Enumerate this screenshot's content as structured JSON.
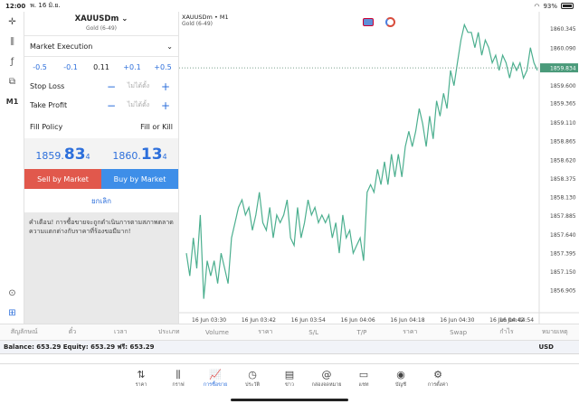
{
  "status": {
    "time": "12:00",
    "date": "พ. 16 มิ.ย.",
    "battery": "93%"
  },
  "tools": {
    "m1_label": "M1"
  },
  "order": {
    "symbol": "XAUUSDm",
    "description": "Gold (6-49)",
    "execution": "Market Execution",
    "volume_steps": [
      "-0.5",
      "-0.1",
      "0.11",
      "+0.1",
      "+0.5"
    ],
    "stop_loss_label": "Stop Loss",
    "take_profit_label": "Take Profit",
    "not_set": "ไม่ได้ตั้ง",
    "fill_policy_label": "Fill Policy",
    "fill_policy_value": "Fill or Kill",
    "bid_prefix": "1859.",
    "bid_big": "83",
    "bid_sup": "4",
    "ask_prefix": "1860.",
    "ask_big": "13",
    "ask_sup": "4",
    "sell_label": "Sell by Market",
    "buy_label": "Buy by Market",
    "cancel_label": "ยกเลิก",
    "warning": "คำเตือน! การซื้อขายจะถูกดำเนินการตามสภาพตลาด ความแตกต่างกับราคาที่ร้องขอมีมาก!"
  },
  "chart": {
    "title": "XAUUSDm • M1",
    "subtitle": "Gold (6-49)",
    "current_price": "1859.834",
    "colors": {
      "line": "#4caf8f",
      "price_tag": "#4a9a7a"
    }
  },
  "chart_data": {
    "type": "line",
    "y_ticks": [
      "1860.345",
      "1860.090",
      "1859.834",
      "1859.600",
      "1859.365",
      "1859.110",
      "1858.865",
      "1858.620",
      "1858.375",
      "1858.130",
      "1857.885",
      "1857.640",
      "1857.395",
      "1857.150",
      "1856.905"
    ],
    "x_ticks": [
      "16 Jun 03:30",
      "16 Jun 03:42",
      "16 Jun 03:54",
      "16 Jun 04:06",
      "16 Jun 04:18",
      "16 Jun 04:30",
      "16 Jun 04:42",
      "16 Jun 04:54"
    ],
    "ylim": [
      1856.7,
      1860.5
    ],
    "values": [
      1857.4,
      1857.1,
      1857.6,
      1857.2,
      1857.9,
      1856.8,
      1857.3,
      1857.1,
      1857.3,
      1857.0,
      1857.4,
      1857.2,
      1857.0,
      1857.6,
      1857.8,
      1858.0,
      1858.1,
      1857.9,
      1858.0,
      1857.7,
      1857.9,
      1858.2,
      1857.8,
      1857.7,
      1858.0,
      1857.6,
      1857.9,
      1857.8,
      1857.9,
      1858.1,
      1857.6,
      1857.5,
      1858.0,
      1857.6,
      1857.8,
      1858.1,
      1857.9,
      1858.0,
      1857.8,
      1857.9,
      1857.8,
      1857.9,
      1857.6,
      1857.8,
      1857.4,
      1857.9,
      1857.6,
      1857.7,
      1857.4,
      1857.5,
      1857.6,
      1857.3,
      1858.2,
      1858.3,
      1858.2,
      1858.5,
      1858.3,
      1858.6,
      1858.3,
      1858.7,
      1858.4,
      1858.7,
      1858.4,
      1858.8,
      1859.0,
      1858.8,
      1859.0,
      1859.3,
      1859.1,
      1858.8,
      1859.2,
      1858.9,
      1859.4,
      1859.2,
      1859.5,
      1859.3,
      1859.8,
      1859.6,
      1859.9,
      1860.2,
      1860.4,
      1860.3,
      1860.3,
      1860.1,
      1860.3,
      1860.0,
      1860.2,
      1860.1,
      1859.9,
      1860.0,
      1859.8,
      1860.0,
      1859.9,
      1859.7,
      1859.9,
      1859.8,
      1859.9,
      1859.7,
      1859.8,
      1860.1,
      1859.9,
      1859.8
    ]
  },
  "columns": [
    "สัญลักษณ์",
    "ตั๋ว",
    "เวลา",
    "ประเภท",
    "Volume",
    "ราคา",
    "S/L",
    "T/P",
    "ราคา",
    "Swap",
    "กำไร",
    "หมายเหตุ"
  ],
  "balance": {
    "text": "Balance: 653.29 Equity: 653.29 ฟรี: 653.29",
    "currency": "USD"
  },
  "tabs": [
    {
      "icon": "⇅",
      "label": "ราคา"
    },
    {
      "icon": "⫼",
      "label": "กราฟ"
    },
    {
      "icon": "📈",
      "label": "การซื้อขาย"
    },
    {
      "icon": "◷",
      "label": "ประวัติ"
    },
    {
      "icon": "▤",
      "label": "ข่าว"
    },
    {
      "icon": "@",
      "label": "กล่องจดหมาย"
    },
    {
      "icon": "▭",
      "label": "แชท"
    },
    {
      "icon": "◉",
      "label": "บัญชี"
    },
    {
      "icon": "⚙",
      "label": "การตั้งค่า"
    }
  ]
}
